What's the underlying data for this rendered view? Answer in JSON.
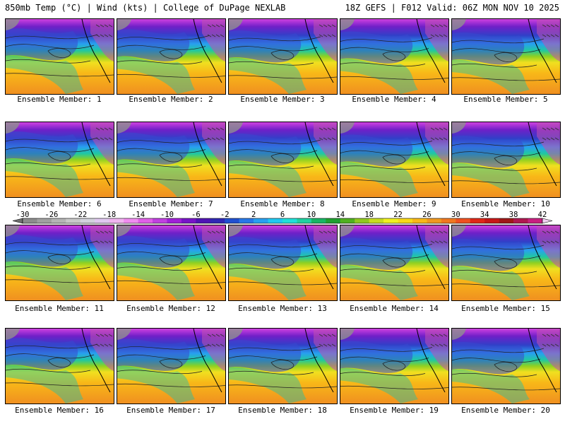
{
  "header": {
    "title_left": "850mb Temp (°C) | Wind (kts) | College of DuPage NEXLAB",
    "title_right": "18Z GEFS | F012 Valid: 06Z MON NOV 10 2025"
  },
  "members": [
    {
      "label": "Ensemble Member: 1"
    },
    {
      "label": "Ensemble Member: 2"
    },
    {
      "label": "Ensemble Member: 3"
    },
    {
      "label": "Ensemble Member: 4"
    },
    {
      "label": "Ensemble Member: 5"
    },
    {
      "label": "Ensemble Member: 6"
    },
    {
      "label": "Ensemble Member: 7"
    },
    {
      "label": "Ensemble Member: 8"
    },
    {
      "label": "Ensemble Member: 9"
    },
    {
      "label": "Ensemble Member: 10"
    },
    {
      "label": "Ensemble Member: 11"
    },
    {
      "label": "Ensemble Member: 12"
    },
    {
      "label": "Ensemble Member: 13"
    },
    {
      "label": "Ensemble Member: 14"
    },
    {
      "label": "Ensemble Member: 15"
    },
    {
      "label": "Ensemble Member: 16"
    },
    {
      "label": "Ensemble Member: 17"
    },
    {
      "label": "Ensemble Member: 18"
    },
    {
      "label": "Ensemble Member: 19"
    },
    {
      "label": "Ensemble Member: 20"
    }
  ],
  "colorbar": {
    "min": -30,
    "max": 42,
    "step": 2,
    "tick_labels": [
      "-30",
      "-26",
      "-22",
      "-18",
      "-14",
      "-10",
      "-6",
      "-2",
      "2",
      "6",
      "10",
      "14",
      "18",
      "22",
      "26",
      "30",
      "34",
      "38",
      "42"
    ],
    "colors": [
      "#8c8c8c",
      "#a0a0a0",
      "#b4b4b4",
      "#c8c8c8",
      "#d2d2dc",
      "#e0c8f0",
      "#f0b4f0",
      "#f08cf0",
      "#e060e8",
      "#c040e0",
      "#a020d8",
      "#7814c8",
      "#5014b4",
      "#3028b4",
      "#2050d0",
      "#2878e8",
      "#28a0f0",
      "#20c8f0",
      "#20e0d8",
      "#20d0a0",
      "#18b464",
      "#20a030",
      "#50b020",
      "#90c820",
      "#c8dc20",
      "#f0f020",
      "#f8d818",
      "#f8b818",
      "#f09820",
      "#f07820",
      "#f05020",
      "#e02818",
      "#c81818",
      "#a01818",
      "#b01850",
      "#c82080"
    ]
  }
}
